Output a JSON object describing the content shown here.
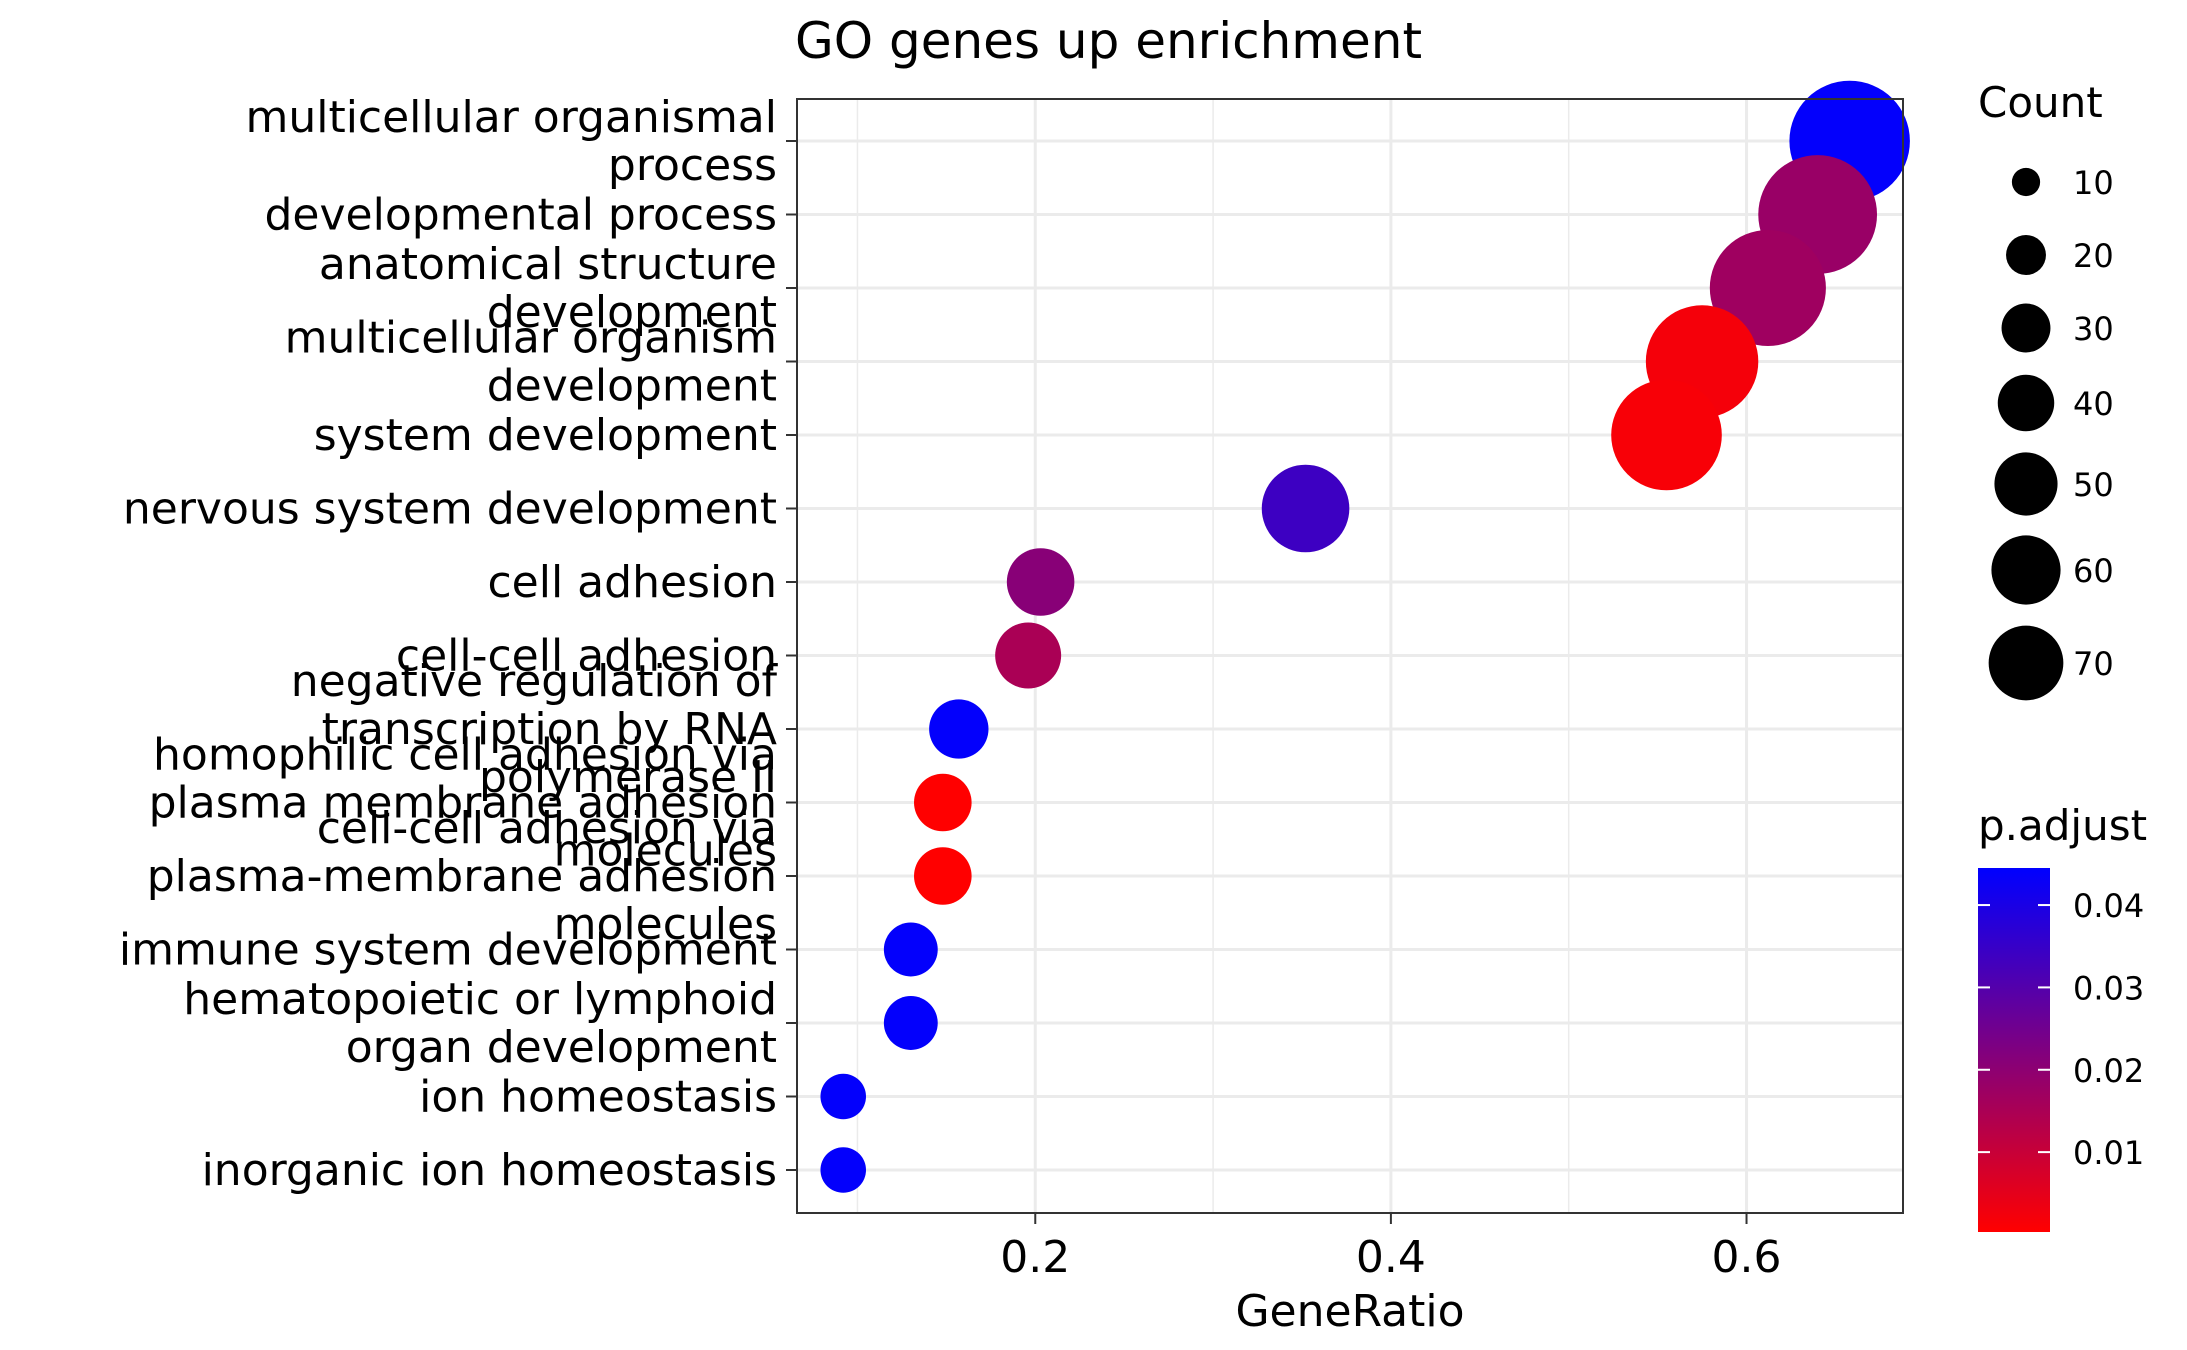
{
  "chart_data": {
    "type": "scatter",
    "title": "GO genes up enrichment",
    "xlabel": "GeneRatio",
    "ylabel": "",
    "xlim": [
      0.066,
      0.688
    ],
    "xticks": [
      0.2,
      0.4,
      0.6
    ],
    "xtick_labels": [
      "0.2",
      "0.4",
      "0.6"
    ],
    "grid": true,
    "categories": [
      "multicellular organismal process",
      "developmental process",
      "anatomical structure development",
      "multicellular organism development",
      "system development",
      "nervous system development",
      "cell adhesion",
      "cell-cell adhesion",
      "negative regulation of transcription by RNA polymerase II",
      "homophilic cell adhesion via plasma membrane adhesion molecules",
      "cell-cell adhesion via plasma-membrane adhesion molecules",
      "immune system development",
      "hematopoietic or lymphoid organ development",
      "ion homeostasis",
      "inorganic ion homeostasis"
    ],
    "category_lines": [
      [
        "multicellular organismal",
        "process"
      ],
      [
        "developmental process"
      ],
      [
        "anatomical structure",
        "development"
      ],
      [
        "multicellular organism",
        "development"
      ],
      [
        "system development"
      ],
      [
        "nervous system development"
      ],
      [
        "cell adhesion"
      ],
      [
        "cell-cell adhesion"
      ],
      [
        "negative regulation of",
        "transcription by RNA",
        "polymerase II"
      ],
      [
        "homophilic cell adhesion via",
        "plasma membrane adhesion",
        "molecules"
      ],
      [
        "cell-cell adhesion via",
        "plasma-membrane adhesion",
        "molecules"
      ],
      [
        "immune system development"
      ],
      [
        "hematopoietic or lymphoid",
        "organ development"
      ],
      [
        "ion homeostasis"
      ],
      [
        "inorganic ion homeostasis"
      ]
    ],
    "gene_ratio": [
      0.658,
      0.64,
      0.612,
      0.575,
      0.555,
      0.352,
      0.203,
      0.196,
      0.157,
      0.148,
      0.148,
      0.13,
      0.13,
      0.092,
      0.092
    ],
    "count": [
      70,
      68,
      65,
      61,
      59,
      37,
      22,
      21,
      17,
      16,
      16,
      14,
      14,
      10,
      10
    ],
    "p_adjust": [
      0.044,
      0.018,
      0.017,
      0.002,
      0.0015,
      0.034,
      0.021,
      0.015,
      0.044,
      0.0003,
      0.0003,
      0.044,
      0.044,
      0.044,
      0.044
    ],
    "legend_size": {
      "title": "Count",
      "values": [
        10,
        20,
        30,
        40,
        50,
        60,
        70
      ],
      "labels": [
        "10",
        "20",
        "30",
        "40",
        "50",
        "60",
        "70"
      ]
    },
    "legend_color": {
      "title": "p.adjust",
      "min": 0.0003,
      "max": 0.0445,
      "ticks": [
        0.01,
        0.02,
        0.03,
        0.04
      ],
      "tick_labels": [
        "0.01",
        "0.02",
        "0.03",
        "0.04"
      ],
      "low_color": "#FF0000",
      "high_color": "#0000FF"
    },
    "legend_position": "right"
  }
}
